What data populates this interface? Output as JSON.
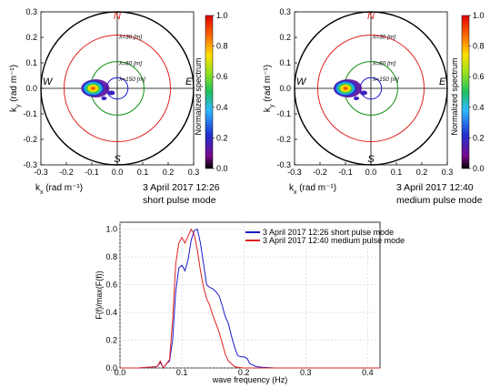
{
  "chart_data": [
    {
      "type": "heatmap",
      "title": "",
      "xlabel": "k_x (rad m⁻¹)",
      "ylabel": "k_y (rad m⁻¹)",
      "xlim": [
        -0.3,
        0.3
      ],
      "ylim": [
        -0.3,
        0.3
      ],
      "x_ticks": [
        "-0.3",
        "-0.2",
        "-0.1",
        "0.0",
        "0.1",
        "0.2",
        "0.3"
      ],
      "y_ticks": [
        "-0.3",
        "-0.2",
        "-0.1",
        "0.0",
        "0.1",
        "0.2",
        "0.3"
      ],
      "compass": {
        "n": "N",
        "s": "S",
        "e": "E",
        "w": "W"
      },
      "wavelength_circles": [
        {
          "label": "λ=30 [m]",
          "k": 0.209
        },
        {
          "label": "λ=60 [m]",
          "k": 0.105
        },
        {
          "label": "λ=150 [m]",
          "k": 0.042
        }
      ],
      "colorbar": {
        "label": "Normalized spectrum",
        "ticks": [
          "1.0",
          "0.8",
          "0.6",
          "0.4",
          "0.2",
          "0.0"
        ],
        "range": [
          0,
          1
        ]
      },
      "peak": {
        "kx": -0.095,
        "ky": 0.0
      },
      "caption_line1": "3 April 2017 12:26",
      "caption_line2": "short pulse mode"
    },
    {
      "type": "heatmap",
      "title": "",
      "xlabel": "k_x (rad m⁻¹)",
      "ylabel": "k_y (rad m⁻¹)",
      "xlim": [
        -0.3,
        0.3
      ],
      "ylim": [
        -0.3,
        0.3
      ],
      "x_ticks": [
        "-0.3",
        "-0.2",
        "-0.1",
        "0.0",
        "0.1",
        "0.2",
        "0.3"
      ],
      "y_ticks": [
        "-0.3",
        "-0.2",
        "-0.1",
        "0.0",
        "0.1",
        "0.2",
        "0.3"
      ],
      "compass": {
        "n": "N",
        "s": "S",
        "e": "E",
        "w": "W"
      },
      "wavelength_circles": [
        {
          "label": "λ=30 [m]",
          "k": 0.209
        },
        {
          "label": "λ=60 [m]",
          "k": 0.105
        },
        {
          "label": "λ=150 [m]",
          "k": 0.042
        }
      ],
      "colorbar": {
        "label": "Normalized spectrum",
        "ticks": [
          "1.0",
          "0.8",
          "0.6",
          "0.4",
          "0.2",
          "0.0"
        ],
        "range": [
          0,
          1
        ]
      },
      "peak": {
        "kx": -0.1,
        "ky": 0.0
      },
      "caption_line1": "3 April 2017 12:40",
      "caption_line2": "medium pulse mode"
    },
    {
      "type": "line",
      "title": "",
      "xlabel": "wave frequency (Hz)",
      "ylabel": "F(f)/max(F(f))",
      "xlim": [
        0.0,
        0.42
      ],
      "ylim": [
        0.0,
        1.05
      ],
      "x_ticks": [
        "0.0",
        "0.1",
        "0.2",
        "0.3",
        "0.4"
      ],
      "y_ticks": [
        "0.0",
        "0.2",
        "0.4",
        "0.6",
        "0.8",
        "1.0"
      ],
      "series": [
        {
          "name": "3 April 2017 12:26 short pulse mode",
          "color": "#1a1acc",
          "x": [
            0.0,
            0.03,
            0.06,
            0.065,
            0.07,
            0.075,
            0.08,
            0.085,
            0.09,
            0.095,
            0.1,
            0.105,
            0.11,
            0.115,
            0.12,
            0.125,
            0.13,
            0.135,
            0.14,
            0.145,
            0.15,
            0.155,
            0.16,
            0.165,
            0.17,
            0.175,
            0.18,
            0.185,
            0.19,
            0.195,
            0.2,
            0.205,
            0.21,
            0.22,
            0.23,
            0.25,
            0.3,
            0.35,
            0.42
          ],
          "y": [
            0.0,
            0.0,
            0.01,
            0.04,
            0.0,
            0.03,
            0.05,
            0.2,
            0.55,
            0.72,
            0.74,
            0.7,
            0.78,
            0.92,
            0.99,
            1.0,
            0.9,
            0.75,
            0.6,
            0.58,
            0.57,
            0.55,
            0.52,
            0.45,
            0.37,
            0.32,
            0.23,
            0.15,
            0.09,
            0.08,
            0.08,
            0.07,
            0.03,
            0.01,
            0.005,
            0.0,
            0.0,
            0.0,
            0.0
          ]
        },
        {
          "name": "3 April 2017 12:40 medium pulse mode",
          "color": "#e02020",
          "x": [
            0.0,
            0.03,
            0.06,
            0.065,
            0.07,
            0.075,
            0.08,
            0.085,
            0.09,
            0.095,
            0.1,
            0.105,
            0.11,
            0.115,
            0.12,
            0.125,
            0.13,
            0.135,
            0.14,
            0.145,
            0.15,
            0.155,
            0.16,
            0.165,
            0.17,
            0.175,
            0.18,
            0.185,
            0.19,
            0.2,
            0.21,
            0.25,
            0.3,
            0.35,
            0.42
          ],
          "y": [
            0.0,
            0.0,
            0.01,
            0.05,
            0.0,
            0.03,
            0.06,
            0.35,
            0.75,
            0.9,
            0.94,
            0.9,
            0.95,
            1.0,
            0.96,
            0.85,
            0.7,
            0.58,
            0.5,
            0.45,
            0.38,
            0.32,
            0.26,
            0.18,
            0.1,
            0.05,
            0.03,
            0.01,
            0.005,
            0.0,
            0.0,
            0.0,
            0.0,
            0.0,
            0.0
          ]
        }
      ],
      "legend_position": "top-right"
    }
  ]
}
